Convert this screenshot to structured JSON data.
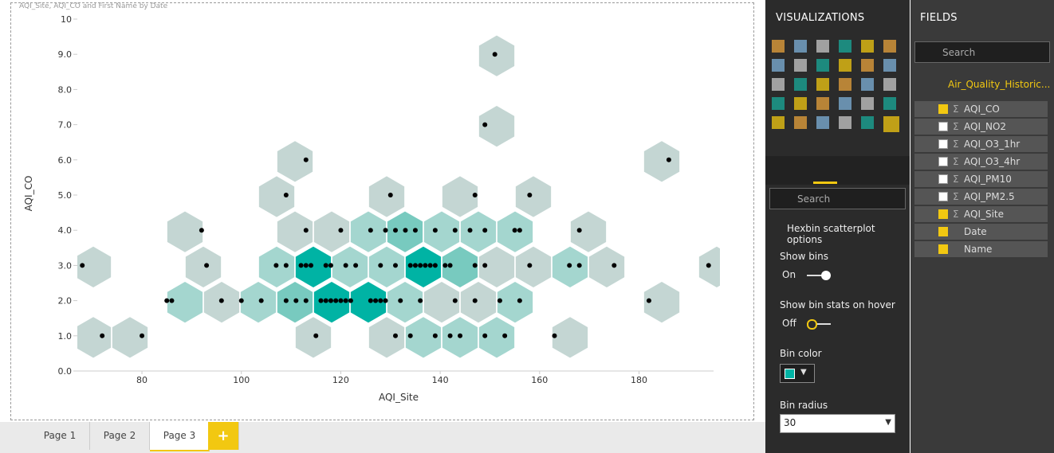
{
  "chart_data": {
    "type": "scatter",
    "title": "AQI_Site, AQI_CO and First Name by Date",
    "x_label": "AQI_Site",
    "y_label": "AQI_CO",
    "color": "#000000",
    "xlim": [
      67,
      195
    ],
    "ylim": [
      0,
      10
    ],
    "xticks": [
      80,
      100,
      120,
      140,
      160,
      180
    ],
    "yticks": [
      {
        "value": 0,
        "label": "0.0"
      },
      {
        "value": 1,
        "label": "1.0"
      },
      {
        "value": 2,
        "label": "2.0"
      },
      {
        "value": 3,
        "label": "3.0"
      },
      {
        "value": 4,
        "label": "4.0"
      },
      {
        "value": 5,
        "label": "5.0"
      },
      {
        "value": 6,
        "label": "6.0"
      },
      {
        "value": 7,
        "label": "7.0"
      },
      {
        "value": 8,
        "label": "8.0"
      },
      {
        "value": 9,
        "label": "9.0"
      },
      10
    ],
    "x": [
      151,
      149,
      113,
      186,
      109,
      130,
      147,
      158,
      92,
      113,
      120,
      126,
      129,
      131,
      133,
      135,
      139,
      143,
      146,
      149,
      155,
      156,
      168,
      68,
      93,
      107,
      109,
      112,
      113,
      114,
      117,
      118,
      121,
      123,
      128,
      131,
      134,
      135,
      136,
      137,
      138,
      139,
      141,
      142,
      147,
      149,
      158,
      166,
      168,
      175,
      194,
      85,
      86,
      96,
      100,
      104,
      109,
      111,
      113,
      116,
      117,
      118,
      119,
      120,
      121,
      122,
      126,
      127,
      128,
      129,
      132,
      136,
      143,
      147,
      152,
      156,
      182,
      72,
      80,
      115,
      131,
      134,
      139,
      142,
      144,
      149,
      153,
      163
    ],
    "values": [
      9,
      7,
      6,
      6,
      5,
      5,
      5,
      5,
      4,
      4,
      4,
      4,
      4,
      4,
      4,
      4,
      4,
      4,
      4,
      4,
      4,
      4,
      4,
      3,
      3,
      3,
      3,
      3,
      3,
      3,
      3,
      3,
      3,
      3,
      3,
      3,
      3,
      3,
      3,
      3,
      3,
      3,
      3,
      3,
      3,
      3,
      3,
      3,
      3,
      3,
      3,
      2,
      2,
      2,
      2,
      2,
      2,
      2,
      2,
      2,
      2,
      2,
      2,
      2,
      2,
      2,
      2,
      2,
      2,
      2,
      2,
      2,
      2,
      2,
      2,
      2,
      2,
      1,
      1,
      1,
      1,
      1,
      1,
      1,
      1,
      1,
      1,
      1
    ]
  },
  "tabs": [
    "Page 1",
    "Page 2",
    "Page 3"
  ],
  "active_tab": 2,
  "visualizations": {
    "title": "VISUALIZATIONS",
    "search": "Search",
    "section": "Hexbin scatterplot options",
    "show_bins": {
      "label": "Show bins",
      "state": "On"
    },
    "show_stats": {
      "label": "Show bin stats on hover",
      "state": "Off"
    },
    "bin_color": {
      "label": "Bin color",
      "color": "#00b3a4"
    },
    "bin_radius": {
      "label": "Bin radius",
      "value": "30"
    }
  },
  "fields": {
    "title": "FIELDS",
    "search": "Search",
    "table": "Air_Quality_Historic...",
    "items": [
      {
        "name": "AQI_CO",
        "checked": true,
        "sigma": true
      },
      {
        "name": "AQI_NO2",
        "checked": false,
        "sigma": true
      },
      {
        "name": "AQI_O3_1hr",
        "checked": false,
        "sigma": true
      },
      {
        "name": "AQI_O3_4hr",
        "checked": false,
        "sigma": true
      },
      {
        "name": "AQI_PM10",
        "checked": false,
        "sigma": true
      },
      {
        "name": "AQI_PM2.5",
        "checked": false,
        "sigma": true
      },
      {
        "name": "AQI_Site",
        "checked": true,
        "sigma": true
      },
      {
        "name": "Date",
        "checked": true,
        "sigma": false
      },
      {
        "name": "Name",
        "checked": true,
        "sigma": false
      }
    ]
  }
}
